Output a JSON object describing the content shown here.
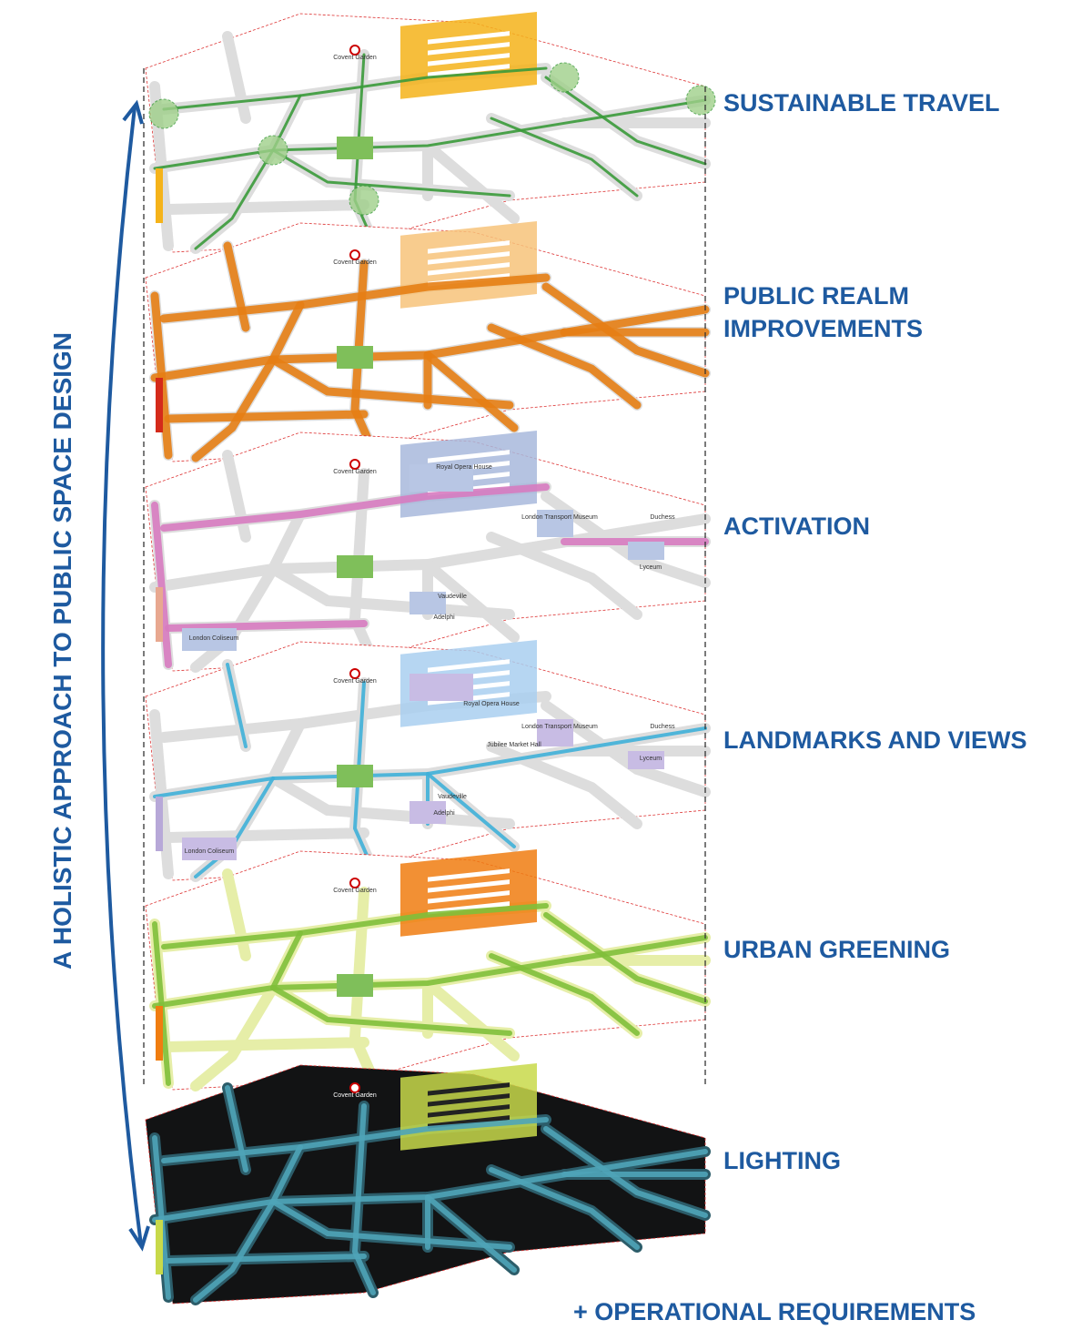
{
  "title": "A HOLISTIC APPROACH TO PUBLIC SPACE DESIGN",
  "layers": [
    {
      "label_lines": [
        "SUSTAINABLE TRAVEL"
      ],
      "map_labels": [
        "Covent Garden"
      ]
    },
    {
      "label_lines": [
        "PUBLIC REALM",
        "IMPROVEMENTS"
      ],
      "map_labels": [
        "Covent Garden"
      ]
    },
    {
      "label_lines": [
        "ACTIVATION"
      ],
      "map_labels": [
        "Covent Garden",
        "Royal Opera House",
        "London Transport Museum",
        "Duchess",
        "Lyceum",
        "Adelphi",
        "Vaudeville",
        "London Coliseum"
      ]
    },
    {
      "label_lines": [
        "LANDMARKS AND VIEWS"
      ],
      "map_labels": [
        "Covent Garden",
        "Royal Opera House",
        "London Transport Museum",
        "Jubilee Market Hall",
        "Duchess",
        "Lyceum",
        "Adelphi",
        "Vaudeville",
        "London Coliseum"
      ]
    },
    {
      "label_lines": [
        "URBAN GREENING"
      ],
      "map_labels": [
        "Covent Garden"
      ]
    },
    {
      "label_lines": [
        "LIGHTING"
      ],
      "map_labels": [
        "Covent Garden"
      ]
    }
  ],
  "footer": "+ OPERATIONAL REQUIREMENTS"
}
